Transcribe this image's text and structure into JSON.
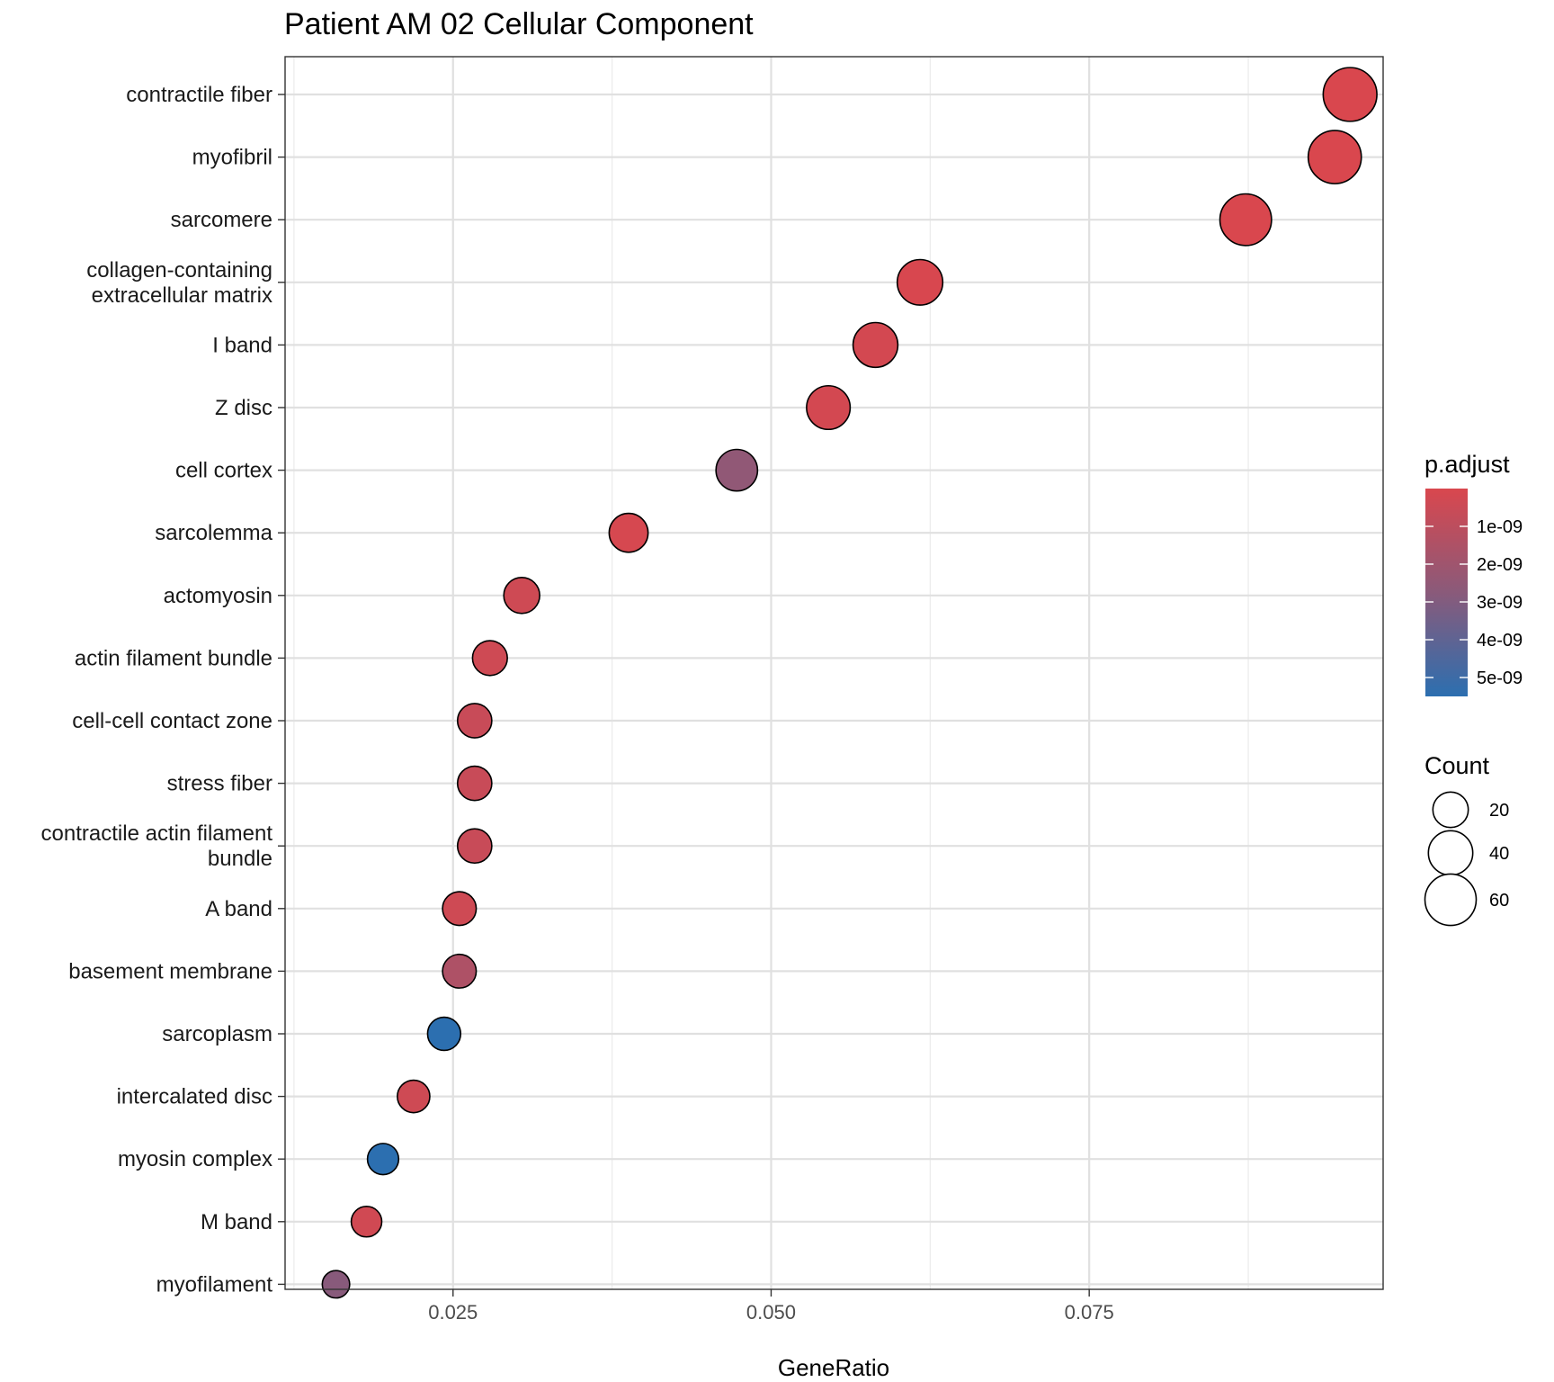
{
  "chart_data": {
    "type": "scatter",
    "title": "Patient AM 02 Cellular Component",
    "xlabel": "GeneRatio",
    "ylabel": "",
    "xlim": [
      0.0118,
      0.0981
    ],
    "x_ticks": [
      "0.025",
      "0.050",
      "0.075"
    ],
    "x_tick_values": [
      0.025,
      0.05,
      0.075
    ],
    "grid": true,
    "categories": [
      "contractile fiber",
      "myofibril",
      "sarcomere",
      "collagen-containing\nextracellular matrix",
      "I band",
      "Z disc",
      "cell cortex",
      "sarcolemma",
      "actomyosin",
      "actin filament bundle",
      "cell-cell contact zone",
      "stress fiber",
      "contractile actin filament\nbundle",
      "A band",
      "basement membrane",
      "sarcoplasm",
      "intercalated disc",
      "myosin complex",
      "M band",
      "myofilament"
    ],
    "points": [
      {
        "term": "contractile fiber",
        "gene_ratio": 0.0955,
        "count": 68,
        "p_adjust": 1e-11
      },
      {
        "term": "myofibril",
        "gene_ratio": 0.0943,
        "count": 66,
        "p_adjust": 1e-11
      },
      {
        "term": "sarcomere",
        "gene_ratio": 0.0873,
        "count": 61,
        "p_adjust": 1e-11
      },
      {
        "term": "collagen-containing extracellular matrix",
        "gene_ratio": 0.0617,
        "count": 43,
        "p_adjust": 5e-11
      },
      {
        "term": "I band",
        "gene_ratio": 0.0582,
        "count": 41,
        "p_adjust": 2e-10
      },
      {
        "term": "Z disc",
        "gene_ratio": 0.0545,
        "count": 38,
        "p_adjust": 2e-10
      },
      {
        "term": "cell cortex",
        "gene_ratio": 0.0473,
        "count": 33,
        "p_adjust": 2.5e-09
      },
      {
        "term": "sarcolemma",
        "gene_ratio": 0.0388,
        "count": 27,
        "p_adjust": 1e-10
      },
      {
        "term": "actomyosin",
        "gene_ratio": 0.0304,
        "count": 21,
        "p_adjust": 4e-10
      },
      {
        "term": "actin filament bundle",
        "gene_ratio": 0.0279,
        "count": 19,
        "p_adjust": 4e-10
      },
      {
        "term": "cell-cell contact zone",
        "gene_ratio": 0.0267,
        "count": 18,
        "p_adjust": 6e-10
      },
      {
        "term": "stress fiber",
        "gene_ratio": 0.0267,
        "count": 18,
        "p_adjust": 6e-10
      },
      {
        "term": "contractile actin filament bundle",
        "gene_ratio": 0.0267,
        "count": 18,
        "p_adjust": 6e-10
      },
      {
        "term": "A band",
        "gene_ratio": 0.0255,
        "count": 17,
        "p_adjust": 4e-10
      },
      {
        "term": "basement membrane",
        "gene_ratio": 0.0255,
        "count": 17,
        "p_adjust": 1.5e-09
      },
      {
        "term": "sarcoplasm",
        "gene_ratio": 0.0243,
        "count": 16,
        "p_adjust": 5.5e-09
      },
      {
        "term": "intercalated disc",
        "gene_ratio": 0.0219,
        "count": 15,
        "p_adjust": 4e-10
      },
      {
        "term": "myosin complex",
        "gene_ratio": 0.0195,
        "count": 13,
        "p_adjust": 5.5e-09
      },
      {
        "term": "M band",
        "gene_ratio": 0.0182,
        "count": 12,
        "p_adjust": 3e-10
      },
      {
        "term": "myofilament",
        "gene_ratio": 0.0158,
        "count": 8,
        "p_adjust": 2.8e-09
      }
    ],
    "color_legend": {
      "title": "p.adjust",
      "low_color": "#d9474e",
      "mid_color": "#8a5a7a",
      "high_color": "#2c6fb0",
      "range": [
        0,
        5.5e-09
      ],
      "ticks": [
        "1e-09",
        "2e-09",
        "3e-09",
        "4e-09",
        "5e-09"
      ],
      "tick_values": [
        1e-09,
        2e-09,
        3e-09,
        4e-09,
        5e-09
      ]
    },
    "size_legend": {
      "title": "Count",
      "entries": [
        {
          "label": "20",
          "value": 20
        },
        {
          "label": "40",
          "value": 40
        },
        {
          "label": "60",
          "value": 60
        }
      ],
      "range": [
        8,
        68
      ]
    },
    "legend_position": "right"
  }
}
